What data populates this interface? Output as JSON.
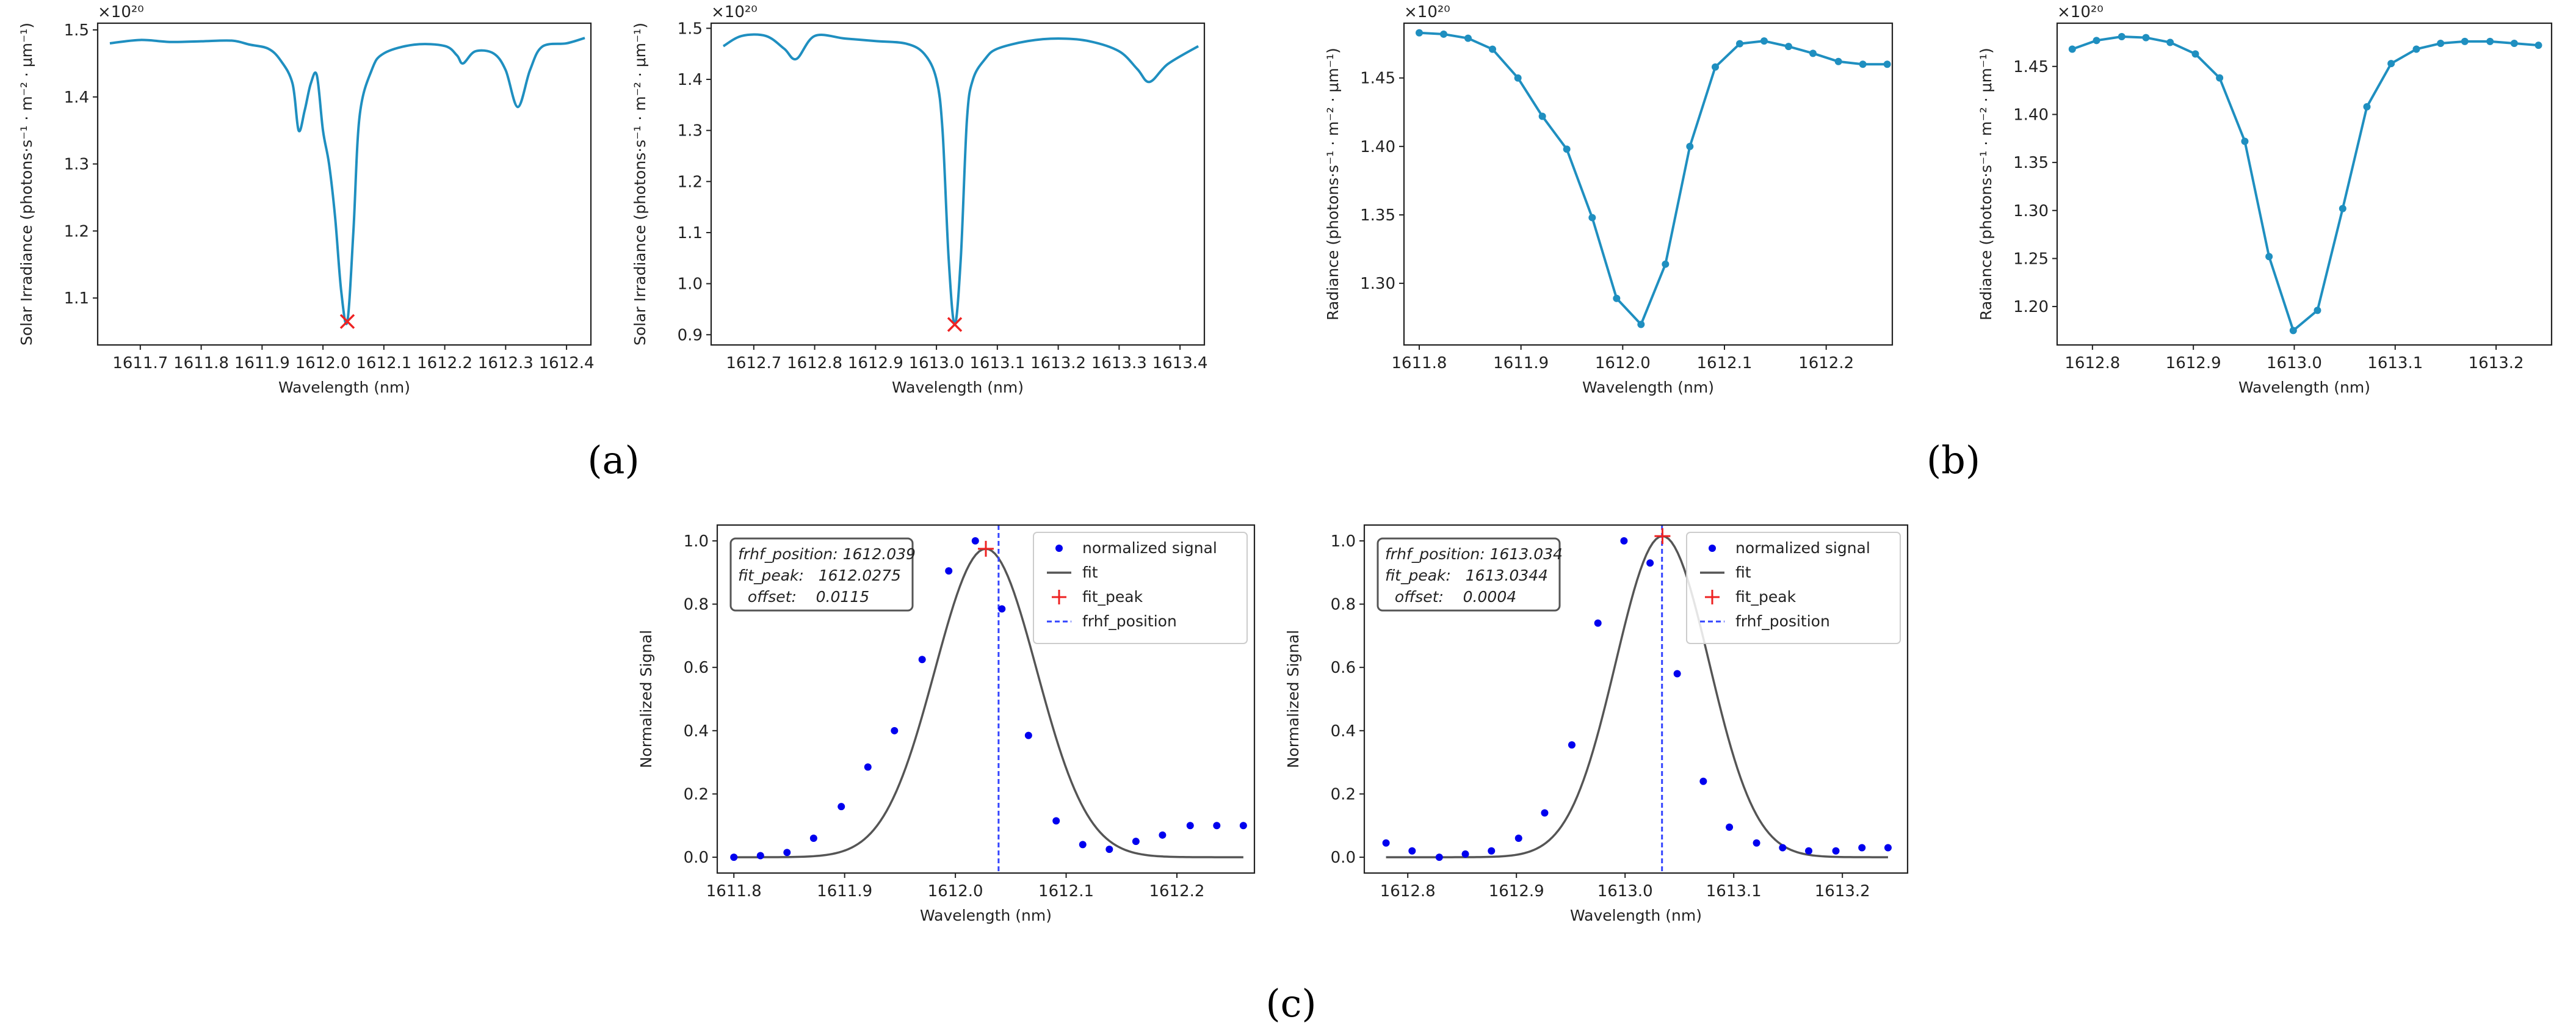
{
  "figure": {
    "panel_labels": [
      "(a)",
      "(b)",
      "(c)"
    ]
  },
  "colors": {
    "line": "#1f8fc0",
    "signal": "#0000ee",
    "fit": "#555555",
    "peak": "#ee2222",
    "frhf": "#3344ff"
  },
  "chart_data": [
    {
      "id": "a1",
      "type": "line",
      "title": "",
      "xlabel": "Wavelength (nm)",
      "ylabel": "Solar Irradiance (photons·s⁻¹ · m⁻² · μm⁻¹)",
      "exponent": "×10²⁰",
      "xlim": [
        1611.63,
        1612.44
      ],
      "ylim": [
        1.03,
        1.51
      ],
      "xticks": [
        1611.7,
        1611.8,
        1611.9,
        1612.0,
        1612.1,
        1612.2,
        1612.3,
        1612.4
      ],
      "xticklabels": [
        "1611.7",
        "1611.8",
        "1611.9",
        "1612.0",
        "1612.1",
        "1612.2",
        "1612.3",
        "1612.4"
      ],
      "yticks": [
        1.1,
        1.2,
        1.3,
        1.4,
        1.5
      ],
      "yticklabels": [
        "1.1",
        "1.2",
        "1.3",
        "1.4",
        "1.5"
      ],
      "smooth": true,
      "series": [
        {
          "name": "solar irradiance",
          "x": [
            1611.65,
            1611.7,
            1611.75,
            1611.8,
            1611.85,
            1611.88,
            1611.91,
            1611.93,
            1611.95,
            1611.96,
            1611.97,
            1611.98,
            1611.99,
            1612.0,
            1612.01,
            1612.02,
            1612.03,
            1612.04,
            1612.05,
            1612.06,
            1612.08,
            1612.1,
            1612.15,
            1612.2,
            1612.22,
            1612.23,
            1612.25,
            1612.28,
            1612.3,
            1612.32,
            1612.34,
            1612.36,
            1612.4,
            1612.43
          ],
          "y": [
            1.48,
            1.485,
            1.482,
            1.483,
            1.484,
            1.478,
            1.472,
            1.455,
            1.42,
            1.35,
            1.38,
            1.42,
            1.432,
            1.35,
            1.3,
            1.22,
            1.11,
            1.065,
            1.2,
            1.37,
            1.44,
            1.465,
            1.478,
            1.476,
            1.462,
            1.45,
            1.468,
            1.465,
            1.44,
            1.385,
            1.44,
            1.475,
            1.48,
            1.488
          ]
        }
      ],
      "markers": [
        {
          "x": 1612.04,
          "y": 1.065,
          "symbol": "x",
          "color": "#ee2222"
        }
      ]
    },
    {
      "id": "a2",
      "type": "line",
      "title": "",
      "xlabel": "Wavelength (nm)",
      "ylabel": "Solar Irradiance (photons·s⁻¹ · m⁻² · μm⁻¹)",
      "exponent": "×10²⁰",
      "xlim": [
        1612.63,
        1613.44
      ],
      "ylim": [
        0.88,
        1.51
      ],
      "xticks": [
        1612.7,
        1612.8,
        1612.9,
        1613.0,
        1613.1,
        1613.2,
        1613.3,
        1613.4
      ],
      "xticklabels": [
        "1612.7",
        "1612.8",
        "1612.9",
        "1613.0",
        "1613.1",
        "1613.2",
        "1613.3",
        "1613.4"
      ],
      "yticks": [
        0.9,
        1.0,
        1.1,
        1.2,
        1.3,
        1.4,
        1.5
      ],
      "yticklabels": [
        "0.9",
        "1.0",
        "1.1",
        "1.2",
        "1.3",
        "1.4",
        "1.5"
      ],
      "smooth": true,
      "series": [
        {
          "name": "solar irradiance",
          "x": [
            1612.65,
            1612.68,
            1612.72,
            1612.75,
            1612.77,
            1612.8,
            1612.85,
            1612.9,
            1612.95,
            1612.98,
            1613.0,
            1613.01,
            1613.02,
            1613.03,
            1613.04,
            1613.05,
            1613.06,
            1613.08,
            1613.1,
            1613.15,
            1613.2,
            1613.25,
            1613.3,
            1613.33,
            1613.35,
            1613.38,
            1613.43
          ],
          "y": [
            1.465,
            1.485,
            1.485,
            1.46,
            1.44,
            1.485,
            1.48,
            1.475,
            1.47,
            1.45,
            1.4,
            1.3,
            1.05,
            0.92,
            1.05,
            1.32,
            1.4,
            1.44,
            1.46,
            1.475,
            1.48,
            1.475,
            1.455,
            1.42,
            1.395,
            1.43,
            1.465
          ]
        }
      ],
      "markers": [
        {
          "x": 1613.03,
          "y": 0.92,
          "symbol": "x",
          "color": "#ee2222"
        }
      ]
    },
    {
      "id": "b1",
      "type": "line",
      "title": "",
      "xlabel": "Wavelength (nm)",
      "ylabel": "Radiance (photons·s⁻¹ · m⁻² · μm⁻¹)",
      "exponent": "×10²⁰",
      "xlim": [
        1611.785,
        1612.265
      ],
      "ylim": [
        1.255,
        1.49
      ],
      "xticks": [
        1611.8,
        1611.9,
        1612.0,
        1612.1,
        1612.2
      ],
      "xticklabels": [
        "1611.8",
        "1611.9",
        "1612.0",
        "1612.1",
        "1612.2"
      ],
      "yticks": [
        1.3,
        1.35,
        1.4,
        1.45
      ],
      "yticklabels": [
        "1.30",
        "1.35",
        "1.40",
        "1.45"
      ],
      "smooth": false,
      "series": [
        {
          "name": "radiance",
          "markers": true,
          "x": [
            1611.8,
            1611.824,
            1611.848,
            1611.872,
            1611.897,
            1611.921,
            1611.945,
            1611.97,
            1611.994,
            1612.018,
            1612.042,
            1612.066,
            1612.091,
            1612.115,
            1612.139,
            1612.163,
            1612.187,
            1612.212,
            1612.236,
            1612.26
          ],
          "y": [
            1.483,
            1.482,
            1.479,
            1.471,
            1.45,
            1.422,
            1.398,
            1.348,
            1.289,
            1.27,
            1.314,
            1.4,
            1.458,
            1.475,
            1.477,
            1.473,
            1.468,
            1.462,
            1.46,
            1.46
          ]
        }
      ]
    },
    {
      "id": "b2",
      "type": "line",
      "title": "",
      "xlabel": "Wavelength (nm)",
      "ylabel": "Radiance (photons·s⁻¹ · m⁻² · μm⁻¹)",
      "exponent": "×10²⁰",
      "xlim": [
        1612.765,
        1613.255
      ],
      "ylim": [
        1.16,
        1.495
      ],
      "xticks": [
        1612.8,
        1612.9,
        1613.0,
        1613.1,
        1613.2
      ],
      "xticklabels": [
        "1612.8",
        "1612.9",
        "1613.0",
        "1613.1",
        "1613.2"
      ],
      "yticks": [
        1.2,
        1.25,
        1.3,
        1.35,
        1.4,
        1.45
      ],
      "yticklabels": [
        "1.20",
        "1.25",
        "1.30",
        "1.35",
        "1.40",
        "1.45"
      ],
      "smooth": false,
      "series": [
        {
          "name": "radiance",
          "markers": true,
          "x": [
            1612.78,
            1612.804,
            1612.829,
            1612.853,
            1612.877,
            1612.902,
            1612.926,
            1612.951,
            1612.975,
            1612.999,
            1613.023,
            1613.048,
            1613.072,
            1613.096,
            1613.121,
            1613.145,
            1613.169,
            1613.194,
            1613.218,
            1613.242
          ],
          "y": [
            1.468,
            1.477,
            1.481,
            1.48,
            1.475,
            1.463,
            1.438,
            1.372,
            1.252,
            1.175,
            1.196,
            1.302,
            1.408,
            1.453,
            1.468,
            1.474,
            1.476,
            1.476,
            1.474,
            1.472
          ]
        }
      ]
    },
    {
      "id": "c1",
      "type": "scatter",
      "title": "",
      "xlabel": "Wavelength (nm)",
      "ylabel": "Normalized Signal",
      "xlim": [
        1611.785,
        1612.27
      ],
      "ylim": [
        -0.05,
        1.05
      ],
      "xticks": [
        1611.8,
        1611.9,
        1612.0,
        1612.1,
        1612.2
      ],
      "xticklabels": [
        "1611.8",
        "1611.9",
        "1612.0",
        "1612.1",
        "1612.2"
      ],
      "yticks": [
        0.0,
        0.2,
        0.4,
        0.6,
        0.8,
        1.0
      ],
      "yticklabels": [
        "0.0",
        "0.2",
        "0.4",
        "0.6",
        "0.8",
        "1.0"
      ],
      "signal": {
        "name": "normalized signal",
        "x": [
          1611.8,
          1611.824,
          1611.848,
          1611.872,
          1611.897,
          1611.921,
          1611.945,
          1611.97,
          1611.994,
          1612.018,
          1612.042,
          1612.066,
          1612.091,
          1612.115,
          1612.139,
          1612.163,
          1612.187,
          1612.212,
          1612.236,
          1612.26
        ],
        "y": [
          0.0,
          0.005,
          0.015,
          0.06,
          0.16,
          0.285,
          0.4,
          0.625,
          0.905,
          1.0,
          0.785,
          0.385,
          0.115,
          0.04,
          0.025,
          0.05,
          0.07,
          0.1,
          0.1,
          0.1
        ]
      },
      "fit": {
        "name": "fit",
        "center": 1612.0275,
        "sigma": 0.046,
        "amplitude": 0.975,
        "x_range": [
          1611.8,
          1612.26
        ]
      },
      "fit_peak": {
        "name": "fit_peak",
        "x": 1612.0275,
        "y": 0.975
      },
      "frhf_position": {
        "name": "frhf_position",
        "x": 1612.039
      },
      "legend": [
        "normalized signal",
        "fit",
        "fit_peak",
        "frhf_position"
      ],
      "legend_loc": "upper right",
      "annotation": [
        "frhf_position: 1612.039",
        "fit_peak:   1612.0275",
        "  offset:    0.0115"
      ]
    },
    {
      "id": "c2",
      "type": "scatter",
      "title": "",
      "xlabel": "Wavelength (nm)",
      "ylabel": "Normalized Signal",
      "xlim": [
        1612.76,
        1613.26
      ],
      "ylim": [
        -0.05,
        1.05
      ],
      "xticks": [
        1612.8,
        1612.9,
        1613.0,
        1613.1,
        1613.2
      ],
      "xticklabels": [
        "1612.8",
        "1612.9",
        "1613.0",
        "1613.1",
        "1613.2"
      ],
      "yticks": [
        0.0,
        0.2,
        0.4,
        0.6,
        0.8,
        1.0
      ],
      "yticklabels": [
        "0.0",
        "0.2",
        "0.4",
        "0.6",
        "0.8",
        "1.0"
      ],
      "signal": {
        "name": "normalized signal",
        "x": [
          1612.78,
          1612.804,
          1612.829,
          1612.853,
          1612.877,
          1612.902,
          1612.926,
          1612.951,
          1612.975,
          1612.999,
          1613.023,
          1613.048,
          1613.072,
          1613.096,
          1613.121,
          1613.145,
          1613.169,
          1613.194,
          1613.218,
          1613.242
        ],
        "y": [
          0.045,
          0.02,
          0.0,
          0.01,
          0.02,
          0.06,
          0.14,
          0.355,
          0.74,
          1.0,
          0.93,
          0.58,
          0.24,
          0.095,
          0.045,
          0.03,
          0.02,
          0.02,
          0.03,
          0.03
        ]
      },
      "fit": {
        "name": "fit",
        "center": 1613.0344,
        "sigma": 0.043,
        "amplitude": 1.015,
        "x_range": [
          1612.78,
          1613.242
        ]
      },
      "fit_peak": {
        "name": "fit_peak",
        "x": 1613.0344,
        "y": 1.015
      },
      "frhf_position": {
        "name": "frhf_position",
        "x": 1613.034
      },
      "legend": [
        "normalized signal",
        "fit",
        "fit_peak",
        "frhf_position"
      ],
      "legend_loc": "upper right",
      "annotation": [
        "frhf_position: 1613.034",
        "fit_peak:   1613.0344",
        "  offset:    0.0004"
      ]
    }
  ]
}
